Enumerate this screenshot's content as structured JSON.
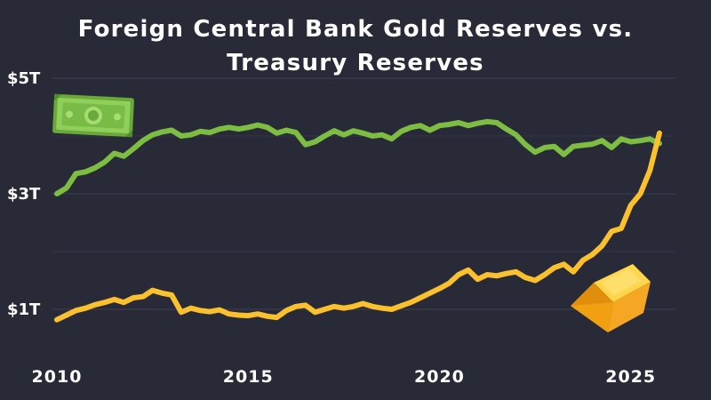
{
  "chart_data": {
    "type": "line",
    "title": "Foreign Central Bank Gold Reserves vs. Treasury Reserves",
    "title_lines": [
      "Foreign Central Bank Gold Reserves vs.",
      "Treasury Reserves"
    ],
    "xlim": [
      2010,
      2025.75
    ],
    "ylim": [
      0.2,
      5
    ],
    "ylabel_ticks": [
      {
        "value": 5,
        "label": "$5T"
      },
      {
        "value": 3,
        "label": "$3T"
      },
      {
        "value": 1,
        "label": "$1T"
      }
    ],
    "gridlines": [
      5,
      3,
      1
    ],
    "xtick_labels": [
      {
        "value": 2010,
        "label": "2010"
      },
      {
        "value": 2015,
        "label": "2015"
      },
      {
        "value": 2020,
        "label": "2020"
      },
      {
        "value": 2025,
        "label": "2025"
      }
    ],
    "series": [
      {
        "icon": "dollar-bill-icon",
        "color": "#7cbd42",
        "x": [
          2010.0,
          2010.25,
          2010.5,
          2010.75,
          2011.0,
          2011.25,
          2011.5,
          2011.75,
          2012.0,
          2012.25,
          2012.5,
          2012.75,
          2013.0,
          2013.25,
          2013.5,
          2013.75,
          2014.0,
          2014.25,
          2014.5,
          2014.75,
          2015.0,
          2015.25,
          2015.5,
          2015.75,
          2016.0,
          2016.25,
          2016.5,
          2016.75,
          2017.0,
          2017.25,
          2017.5,
          2017.75,
          2018.0,
          2018.25,
          2018.5,
          2018.75,
          2019.0,
          2019.25,
          2019.5,
          2019.75,
          2020.0,
          2020.25,
          2020.5,
          2020.75,
          2021.0,
          2021.25,
          2021.5,
          2021.75,
          2022.0,
          2022.25,
          2022.5,
          2022.75,
          2023.0,
          2023.25,
          2023.5,
          2023.75,
          2024.0,
          2024.25,
          2024.5,
          2024.75,
          2025.0,
          2025.25,
          2025.5,
          2025.75
        ],
        "y": [
          3.0,
          3.1,
          3.35,
          3.38,
          3.45,
          3.55,
          3.7,
          3.65,
          3.78,
          3.92,
          4.02,
          4.07,
          4.1,
          4.0,
          4.02,
          4.08,
          4.06,
          4.12,
          4.15,
          4.12,
          4.15,
          4.19,
          4.15,
          4.05,
          4.1,
          4.06,
          3.85,
          3.9,
          4.0,
          4.09,
          4.02,
          4.09,
          4.05,
          4.0,
          4.02,
          3.95,
          4.08,
          4.15,
          4.18,
          4.1,
          4.18,
          4.2,
          4.23,
          4.18,
          4.22,
          4.25,
          4.23,
          4.12,
          4.02,
          3.85,
          3.72,
          3.8,
          3.82,
          3.68,
          3.82,
          3.84,
          3.86,
          3.92,
          3.8,
          3.95,
          3.9,
          3.92,
          3.95,
          3.87
        ]
      },
      {
        "icon": "gold-bar-icon",
        "color": "#fbc02d",
        "x": [
          2010.0,
          2010.25,
          2010.5,
          2010.75,
          2011.0,
          2011.25,
          2011.5,
          2011.75,
          2012.0,
          2012.25,
          2012.5,
          2012.75,
          2013.0,
          2013.25,
          2013.5,
          2013.75,
          2014.0,
          2014.25,
          2014.5,
          2014.75,
          2015.0,
          2015.25,
          2015.5,
          2015.75,
          2016.0,
          2016.25,
          2016.5,
          2016.75,
          2017.0,
          2017.25,
          2017.5,
          2017.75,
          2018.0,
          2018.25,
          2018.5,
          2018.75,
          2019.0,
          2019.25,
          2019.5,
          2019.75,
          2020.0,
          2020.25,
          2020.5,
          2020.75,
          2021.0,
          2021.25,
          2021.5,
          2021.75,
          2022.0,
          2022.25,
          2022.5,
          2022.75,
          2023.0,
          2023.25,
          2023.5,
          2023.75,
          2024.0,
          2024.25,
          2024.5,
          2024.75,
          2025.0,
          2025.25,
          2025.5,
          2025.75
        ],
        "y": [
          0.82,
          0.9,
          0.98,
          1.02,
          1.08,
          1.12,
          1.17,
          1.12,
          1.2,
          1.22,
          1.33,
          1.28,
          1.25,
          0.95,
          1.02,
          0.98,
          0.96,
          0.99,
          0.92,
          0.9,
          0.89,
          0.92,
          0.88,
          0.86,
          0.98,
          1.05,
          1.07,
          0.95,
          1.0,
          1.05,
          1.02,
          1.05,
          1.1,
          1.05,
          1.02,
          1.0,
          1.06,
          1.12,
          1.2,
          1.28,
          1.36,
          1.45,
          1.6,
          1.68,
          1.52,
          1.6,
          1.58,
          1.62,
          1.65,
          1.55,
          1.5,
          1.6,
          1.72,
          1.78,
          1.65,
          1.85,
          1.95,
          2.1,
          2.35,
          2.4,
          2.8,
          3.0,
          3.4,
          4.05
        ]
      }
    ]
  }
}
